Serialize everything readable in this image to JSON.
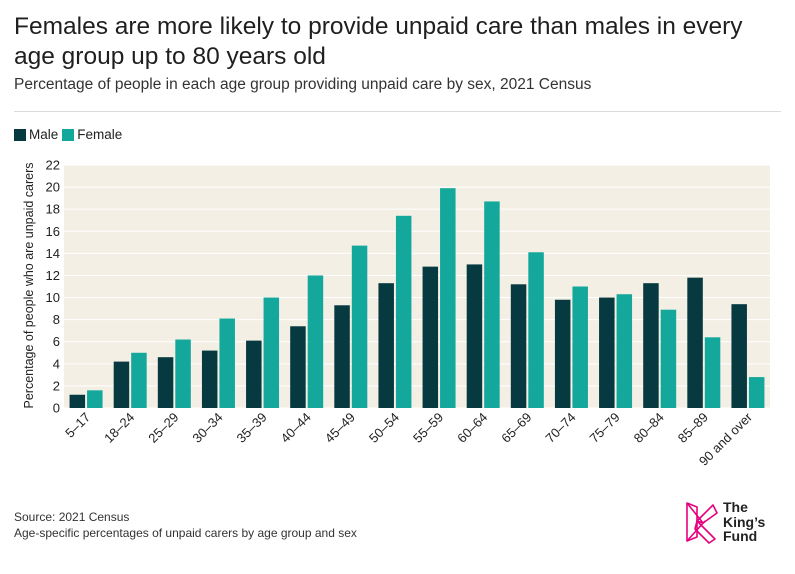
{
  "title": "Females are more likely to provide unpaid care than males in every age group up to 80 years old",
  "subtitle": "Percentage of people in each age group providing unpaid care by sex, 2021 Census",
  "legend": {
    "male": "Male",
    "female": "Female"
  },
  "colors": {
    "male": "#073a40",
    "female": "#14a89c",
    "plot_bg": "#f4efe4",
    "grid": "#ffffff",
    "logo": "#e6007e"
  },
  "footer": {
    "source": "Source: 2021 Census",
    "note": "Age-specific percentages of unpaid carers by age group and sex"
  },
  "logo": {
    "line1": "The",
    "line2": "King’s",
    "line3": "Fund"
  },
  "chart_data": {
    "type": "bar",
    "categories": [
      "5–17",
      "18–24",
      "25–29",
      "30–34",
      "35–39",
      "40–44",
      "45–49",
      "50–54",
      "55–59",
      "60–64",
      "65–69",
      "70–74",
      "75–79",
      "80–84",
      "85–89",
      "90 and over"
    ],
    "series": [
      {
        "name": "Male",
        "values": [
          1.2,
          4.2,
          4.6,
          5.2,
          6.1,
          7.4,
          9.3,
          11.3,
          12.8,
          13.0,
          11.2,
          9.8,
          10.0,
          11.3,
          11.8,
          9.4
        ]
      },
      {
        "name": "Female",
        "values": [
          1.6,
          5.0,
          6.2,
          8.1,
          10.0,
          12.0,
          14.7,
          17.4,
          19.9,
          18.7,
          14.1,
          11.0,
          10.3,
          8.9,
          6.4,
          2.8
        ]
      }
    ],
    "ylabel": "Percentage of people who are unpaid carers",
    "ylim": [
      0,
      22
    ],
    "yticks": [
      0,
      2,
      4,
      6,
      8,
      10,
      12,
      14,
      16,
      18,
      20,
      22
    ],
    "grid": true,
    "legend_position": "top-left"
  }
}
